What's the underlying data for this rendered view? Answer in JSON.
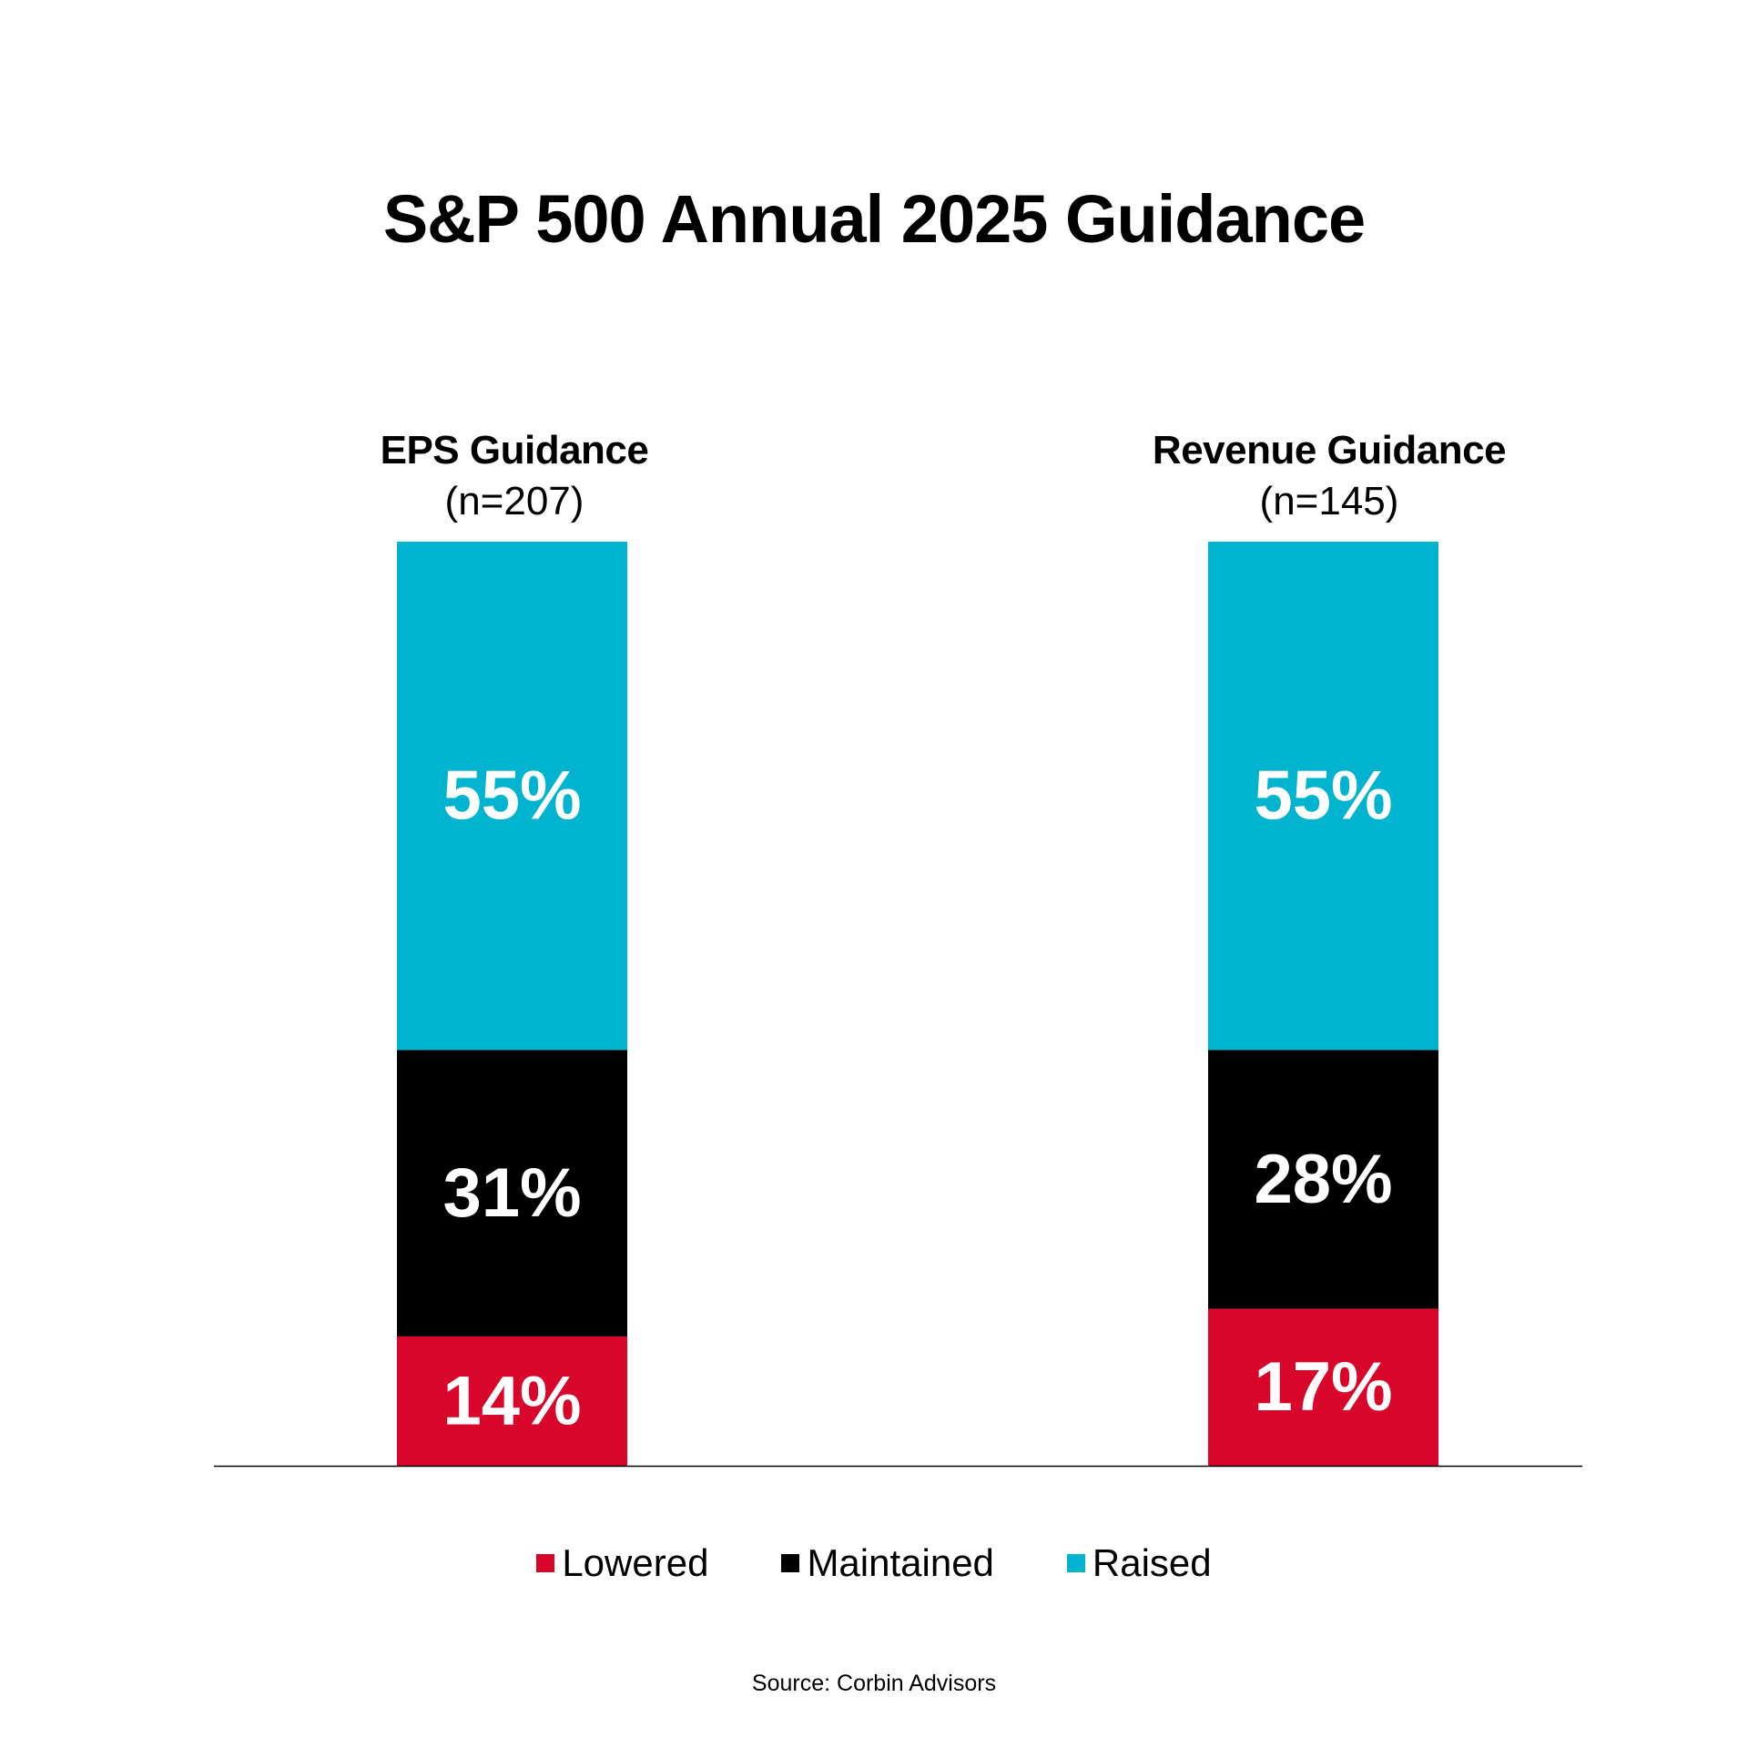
{
  "chart_data": {
    "type": "bar",
    "stacked": true,
    "title": "S&P 500 Annual 2025 Guidance",
    "categories": [
      "EPS Guidance",
      "Revenue Guidance"
    ],
    "category_notes": [
      "(n=207)",
      "(n=145)"
    ],
    "series": [
      {
        "name": "Lowered",
        "values": [
          14,
          17
        ],
        "color": "#D9062B"
      },
      {
        "name": "Maintained",
        "values": [
          31,
          28
        ],
        "color": "#000000"
      },
      {
        "name": "Raised",
        "values": [
          55,
          55
        ],
        "color": "#00B4CF"
      }
    ],
    "value_suffix": "%",
    "ylim": [
      0,
      100
    ],
    "grid": false,
    "legend_position": "bottom",
    "source": "Source: Corbin Advisors"
  }
}
